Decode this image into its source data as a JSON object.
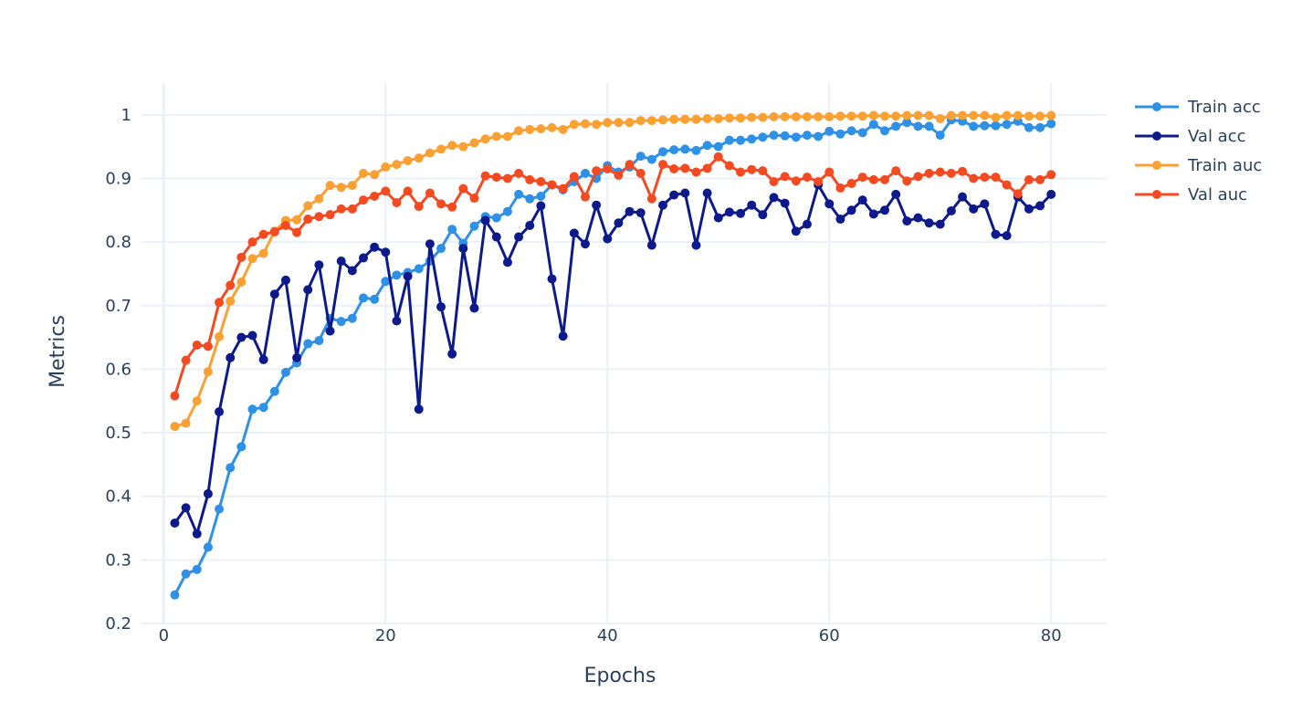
{
  "chart_data": {
    "type": "line",
    "title": "",
    "xlabel": "Epochs",
    "ylabel": "Metrics",
    "xlim": [
      -2,
      85
    ],
    "ylim": [
      0.2,
      1.05
    ],
    "xticks": [
      0,
      20,
      40,
      60,
      80
    ],
    "xtick_labels": [
      "0",
      "20",
      "40",
      "60",
      "80"
    ],
    "yticks": [
      0.2,
      0.3,
      0.4,
      0.5,
      0.6,
      0.7,
      0.8,
      0.9,
      1.0
    ],
    "ytick_labels": [
      "0.2",
      "0.3",
      "0.4",
      "0.5",
      "0.6",
      "0.7",
      "0.8",
      "0.9",
      "1"
    ],
    "grid": true,
    "legend_position": "top-right",
    "series": [
      {
        "name": "Train acc",
        "color": "#2e91e5",
        "values": [
          0.245,
          0.278,
          0.285,
          0.32,
          0.38,
          0.445,
          0.478,
          0.537,
          0.54,
          0.565,
          0.595,
          0.61,
          0.64,
          0.645,
          0.68,
          0.675,
          0.68,
          0.712,
          0.71,
          0.738,
          0.748,
          0.752,
          0.758,
          0.77,
          0.79,
          0.82,
          0.798,
          0.825,
          0.84,
          0.838,
          0.848,
          0.875,
          0.868,
          0.872,
          0.89,
          0.882,
          0.895,
          0.908,
          0.9,
          0.92,
          0.91,
          0.918,
          0.935,
          0.93,
          0.942,
          0.945,
          0.946,
          0.944,
          0.952,
          0.95,
          0.96,
          0.96,
          0.962,
          0.965,
          0.968,
          0.967,
          0.965,
          0.968,
          0.966,
          0.974,
          0.97,
          0.975,
          0.972,
          0.985,
          0.975,
          0.982,
          0.988,
          0.982,
          0.982,
          0.968,
          0.992,
          0.99,
          0.982,
          0.983,
          0.983,
          0.985,
          0.99,
          0.98,
          0.98,
          0.986
        ]
      },
      {
        "name": "Val acc",
        "color": "#0d1a8c",
        "values": [
          0.358,
          0.382,
          0.341,
          0.404,
          0.533,
          0.618,
          0.65,
          0.653,
          0.615,
          0.718,
          0.74,
          0.618,
          0.725,
          0.764,
          0.66,
          0.77,
          0.755,
          0.775,
          0.792,
          0.784,
          0.676,
          0.746,
          0.537,
          0.797,
          0.698,
          0.624,
          0.79,
          0.696,
          0.834,
          0.808,
          0.768,
          0.808,
          0.826,
          0.857,
          0.742,
          0.652,
          0.814,
          0.797,
          0.858,
          0.805,
          0.83,
          0.848,
          0.846,
          0.795,
          0.858,
          0.874,
          0.877,
          0.795,
          0.877,
          0.838,
          0.847,
          0.845,
          0.858,
          0.843,
          0.87,
          0.861,
          0.817,
          0.828,
          0.89,
          0.86,
          0.836,
          0.85,
          0.866,
          0.844,
          0.85,
          0.875,
          0.833,
          0.838,
          0.83,
          0.828,
          0.849,
          0.871,
          0.852,
          0.86,
          0.812,
          0.81,
          0.871,
          0.852,
          0.857,
          0.875
        ]
      },
      {
        "name": "Train auc",
        "color": "#fba033",
        "values": [
          0.51,
          0.515,
          0.55,
          0.596,
          0.651,
          0.707,
          0.737,
          0.774,
          0.782,
          0.817,
          0.834,
          0.835,
          0.857,
          0.868,
          0.889,
          0.886,
          0.889,
          0.908,
          0.906,
          0.918,
          0.922,
          0.928,
          0.932,
          0.94,
          0.946,
          0.952,
          0.95,
          0.956,
          0.962,
          0.966,
          0.966,
          0.975,
          0.977,
          0.978,
          0.98,
          0.977,
          0.985,
          0.986,
          0.985,
          0.988,
          0.988,
          0.988,
          0.991,
          0.991,
          0.992,
          0.993,
          0.993,
          0.993,
          0.994,
          0.994,
          0.995,
          0.995,
          0.996,
          0.996,
          0.997,
          0.997,
          0.997,
          0.997,
          0.997,
          0.997,
          0.998,
          0.998,
          0.998,
          0.999,
          0.998,
          0.998,
          0.999,
          0.999,
          0.999,
          0.994,
          0.999,
          0.999,
          0.999,
          0.999,
          0.996,
          0.999,
          0.999,
          0.998,
          0.998,
          0.999
        ]
      },
      {
        "name": "Val auc",
        "color": "#f44a22",
        "values": [
          0.558,
          0.614,
          0.638,
          0.636,
          0.705,
          0.732,
          0.776,
          0.8,
          0.812,
          0.816,
          0.826,
          0.815,
          0.836,
          0.84,
          0.843,
          0.852,
          0.852,
          0.866,
          0.872,
          0.88,
          0.862,
          0.88,
          0.856,
          0.877,
          0.86,
          0.855,
          0.884,
          0.869,
          0.904,
          0.902,
          0.9,
          0.908,
          0.898,
          0.895,
          0.89,
          0.884,
          0.903,
          0.871,
          0.912,
          0.915,
          0.905,
          0.922,
          0.908,
          0.868,
          0.922,
          0.915,
          0.916,
          0.91,
          0.916,
          0.934,
          0.92,
          0.91,
          0.914,
          0.912,
          0.895,
          0.903,
          0.896,
          0.902,
          0.895,
          0.91,
          0.885,
          0.892,
          0.902,
          0.898,
          0.898,
          0.912,
          0.896,
          0.903,
          0.908,
          0.91,
          0.908,
          0.911,
          0.9,
          0.902,
          0.902,
          0.89,
          0.876,
          0.898,
          0.898,
          0.906
        ]
      }
    ]
  }
}
